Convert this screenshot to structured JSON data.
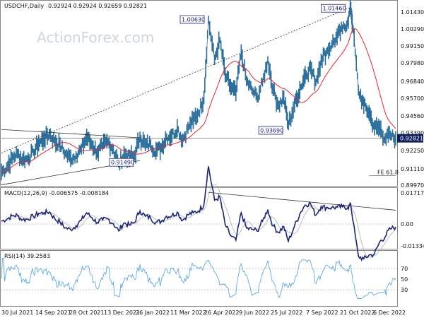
{
  "chart_data": {
    "type": "line",
    "title": "USDCHF,Daily",
    "header_values": "0.92924 0.92924 0.92659 0.92821",
    "watermark": "ActionForex.com",
    "price_panel": {
      "ylim": [
        0.8973,
        1.0175
      ],
      "y_ticks": [
        "1.01430",
        "1.00290",
        "0.99150",
        "0.97980",
        "0.96840",
        "0.95700",
        "0.94560",
        "0.93390",
        "0.92250",
        "0.91110",
        "0.89970"
      ],
      "current_price": 0.92821,
      "current_price_label": "0.92821",
      "fe_label": "FE 61.8",
      "fe_level": 0.9035,
      "annotations": [
        {
          "label": "1.00630",
          "date": "Apr 28 2022",
          "price": 1.0063
        },
        {
          "label": "1.01460",
          "date": "Nov 1 2022",
          "price": 1.0146
        },
        {
          "label": "0.93690",
          "date": "Aug 11 2022",
          "price": 0.9369
        },
        {
          "label": "0.91490",
          "date": "Jan 14 2022",
          "price": 0.9149
        }
      ],
      "close_series": [
        [
          "2021-07-30",
          0.906
        ],
        [
          "2021-08-06",
          0.909
        ],
        [
          "2021-08-13",
          0.915
        ],
        [
          "2021-08-20",
          0.918
        ],
        [
          "2021-08-27",
          0.914
        ],
        [
          "2021-09-03",
          0.915
        ],
        [
          "2021-09-10",
          0.919
        ],
        [
          "2021-09-17",
          0.925
        ],
        [
          "2021-09-24",
          0.928
        ],
        [
          "2021-10-01",
          0.931
        ],
        [
          "2021-10-08",
          0.926
        ],
        [
          "2021-10-15",
          0.924
        ],
        [
          "2021-10-22",
          0.918
        ],
        [
          "2021-10-29",
          0.915
        ],
        [
          "2021-11-05",
          0.917
        ],
        [
          "2021-11-12",
          0.921
        ],
        [
          "2021-11-19",
          0.929
        ],
        [
          "2021-11-26",
          0.924
        ],
        [
          "2021-12-03",
          0.919
        ],
        [
          "2021-12-10",
          0.923
        ],
        [
          "2021-12-17",
          0.926
        ],
        [
          "2021-12-24",
          0.921
        ],
        [
          "2021-12-31",
          0.911
        ],
        [
          "2022-01-07",
          0.918
        ],
        [
          "2022-01-14",
          0.9149
        ],
        [
          "2022-01-21",
          0.917
        ],
        [
          "2022-01-28",
          0.929
        ],
        [
          "2022-02-04",
          0.924
        ],
        [
          "2022-02-11",
          0.924
        ],
        [
          "2022-02-18",
          0.92
        ],
        [
          "2022-02-25",
          0.922
        ],
        [
          "2022-03-04",
          0.929
        ],
        [
          "2022-03-11",
          0.93
        ],
        [
          "2022-03-18",
          0.935
        ],
        [
          "2022-03-25",
          0.927
        ],
        [
          "2022-04-01",
          0.935
        ],
        [
          "2022-04-08",
          0.94
        ],
        [
          "2022-04-15",
          0.945
        ],
        [
          "2022-04-22",
          0.955
        ],
        [
          "2022-04-28",
          1.0063
        ],
        [
          "2022-05-06",
          0.98
        ],
        [
          "2022-05-13",
          0.993
        ],
        [
          "2022-05-20",
          0.97
        ],
        [
          "2022-05-27",
          0.962
        ],
        [
          "2022-06-03",
          0.958
        ],
        [
          "2022-06-10",
          0.985
        ],
        [
          "2022-06-17",
          0.966
        ],
        [
          "2022-06-24",
          0.96
        ],
        [
          "2022-07-01",
          0.955
        ],
        [
          "2022-07-08",
          0.965
        ],
        [
          "2022-07-15",
          0.98
        ],
        [
          "2022-07-22",
          0.96
        ],
        [
          "2022-07-29",
          0.95
        ],
        [
          "2022-08-05",
          0.955
        ],
        [
          "2022-08-11",
          0.9369
        ],
        [
          "2022-08-19",
          0.95
        ],
        [
          "2022-08-26",
          0.96
        ],
        [
          "2022-09-02",
          0.97
        ],
        [
          "2022-09-09",
          0.975
        ],
        [
          "2022-09-16",
          0.965
        ],
        [
          "2022-09-23",
          0.98
        ],
        [
          "2022-09-30",
          0.985
        ],
        [
          "2022-10-07",
          0.99
        ],
        [
          "2022-10-14",
          0.995
        ],
        [
          "2022-10-21",
          1.0
        ],
        [
          "2022-10-28",
          1.005
        ],
        [
          "2022-11-01",
          1.0146
        ],
        [
          "2022-11-04",
          1.0
        ],
        [
          "2022-11-11",
          0.96
        ],
        [
          "2022-11-18",
          0.95
        ],
        [
          "2022-11-25",
          0.945
        ],
        [
          "2022-12-02",
          0.935
        ],
        [
          "2022-12-09",
          0.935
        ],
        [
          "2022-12-16",
          0.928
        ],
        [
          "2022-12-23",
          0.93
        ],
        [
          "2022-12-30",
          0.9282
        ]
      ]
    },
    "macd_panel": {
      "title": "MACD(12,26,9) -0.006575 -0.008184",
      "ylim": [
        -0.0158,
        0.019
      ],
      "y_ticks": [
        "0.01717",
        "0.00",
        "-0.01334"
      ]
    },
    "rsi_panel": {
      "title": "RSI(14) 39.2583",
      "ylim": [
        10,
        90
      ],
      "y_ticks": [
        "70",
        "50",
        "30"
      ]
    },
    "x_ticks": [
      "30 Jul 2021",
      "14 Sep 2021",
      "28 Oct 2021",
      "13 Dec 2021",
      "26 Jan 2022",
      "11 Mar 2022",
      "26 Apr 2022",
      "9 Jun 2022",
      "25 Jul 2022",
      "7 Sep 2022",
      "21 Oct 2022",
      "6 Dec 2022"
    ],
    "colors": {
      "price": "#2b6f9e",
      "moving_average": "#e8262c",
      "macd": "#1a237e",
      "signal": "#b0b0b0",
      "rsi": "#5fa9e6",
      "trendline": "#333333",
      "current_tag": "#0d1f5c"
    }
  }
}
